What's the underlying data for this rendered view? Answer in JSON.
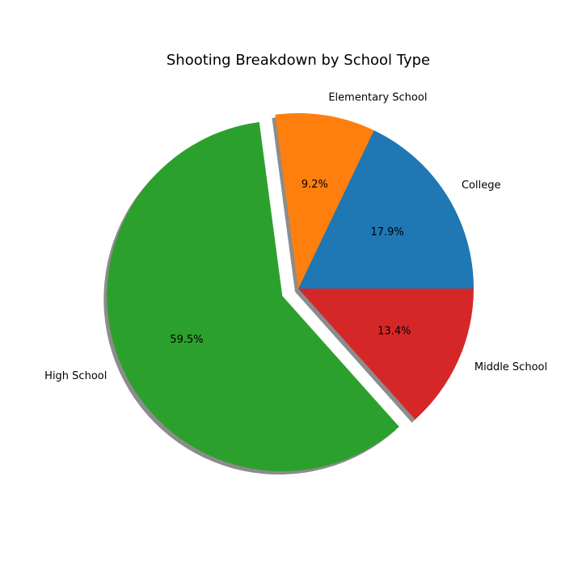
{
  "chart_data": {
    "type": "pie",
    "title": "Shooting Breakdown by School Type",
    "slices": [
      {
        "label": "College",
        "value": 17.9,
        "pct_label": "17.9%",
        "color": "#1f77b4",
        "exploded": false
      },
      {
        "label": "Elementary School",
        "value": 9.2,
        "pct_label": "9.2%",
        "color": "#ff7f0e",
        "exploded": false
      },
      {
        "label": "High School",
        "value": 59.5,
        "pct_label": "59.5%",
        "color": "#2ca02c",
        "exploded": true
      },
      {
        "label": "Middle School",
        "value": 13.4,
        "pct_label": "13.4%",
        "color": "#d62728",
        "exploded": false
      }
    ],
    "start_angle": 0,
    "direction": "counterclockwise",
    "shadow": true,
    "legend": "none"
  }
}
